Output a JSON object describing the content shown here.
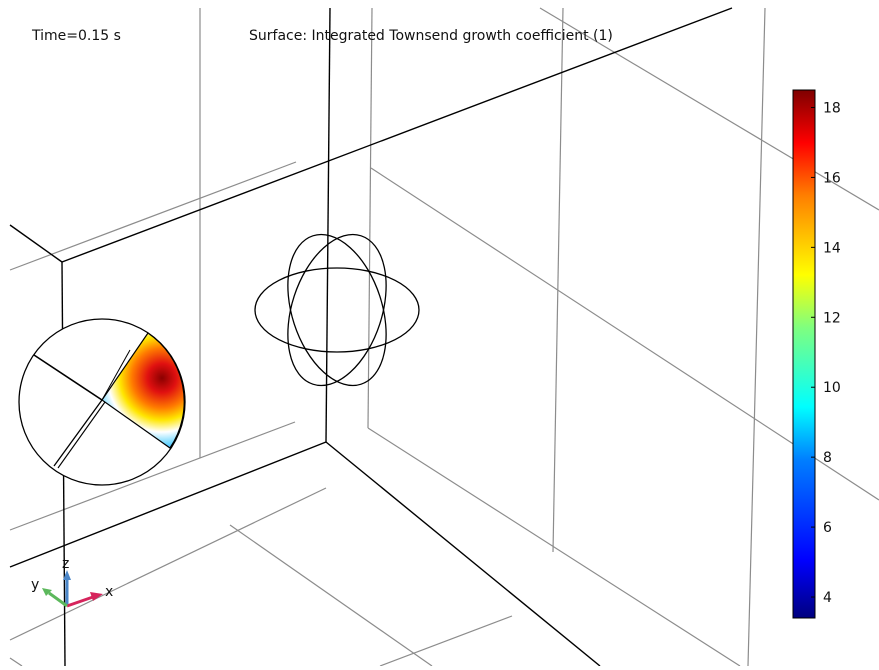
{
  "plot": {
    "time_label": "Time=0.15 s",
    "title": "Surface: Integrated Townsend growth coefficient (1)"
  },
  "colorbar": {
    "colormap": "rainbow (dark blue to dark red)",
    "min": 3.4,
    "max": 18.5,
    "ticks": [
      "4",
      "6",
      "8",
      "10",
      "12",
      "14",
      "16",
      "18"
    ]
  },
  "triad": {
    "x_label": "x",
    "y_label": "y",
    "z_label": "z",
    "x_color": "#d6245c",
    "y_color": "#5cb85c",
    "z_color": "#4a86c8"
  },
  "colors": {
    "background": "#ffffff",
    "edge_dark": "#000000",
    "edge_light": "#8c8c8c"
  }
}
